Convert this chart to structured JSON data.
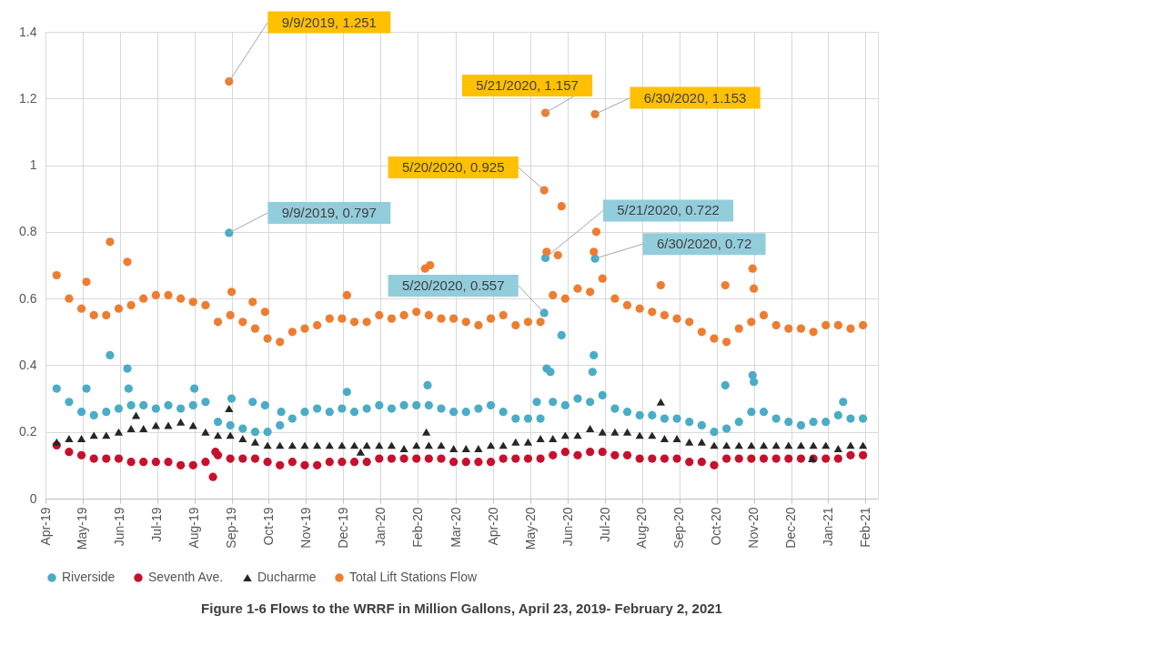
{
  "chart_data": {
    "type": "scatter",
    "title": "Figure 1-6 Flows to the WRRF in Million Gallons, April 23, 2019- February 2, 2021",
    "xlim": [
      "2019-04-14",
      "2021-02-13"
    ],
    "ylim": [
      0,
      1.4
    ],
    "yticks": [
      0,
      0.2,
      0.4,
      0.6,
      0.8,
      1,
      1.2,
      1.4
    ],
    "xticks": [
      {
        "value": "2019-04-14",
        "label": "Apr-19"
      },
      {
        "value": "2019-05-14",
        "label": "May-19"
      },
      {
        "value": "2019-06-13",
        "label": "Jun-19"
      },
      {
        "value": "2019-07-13",
        "label": "Jul-19"
      },
      {
        "value": "2019-08-12",
        "label": "Aug-19"
      },
      {
        "value": "2019-09-11",
        "label": "Sep-19"
      },
      {
        "value": "2019-10-11",
        "label": "Oct-19"
      },
      {
        "value": "2019-11-10",
        "label": "Nov-19"
      },
      {
        "value": "2019-12-10",
        "label": "Dec-19"
      },
      {
        "value": "2020-01-09",
        "label": "Jan-20"
      },
      {
        "value": "2020-02-08",
        "label": "Feb-20"
      },
      {
        "value": "2020-03-10",
        "label": "Mar-20"
      },
      {
        "value": "2020-04-09",
        "label": "Apr-20"
      },
      {
        "value": "2020-05-09",
        "label": "May-20"
      },
      {
        "value": "2020-06-08",
        "label": "Jun-20"
      },
      {
        "value": "2020-07-08",
        "label": "Jul-20"
      },
      {
        "value": "2020-08-07",
        "label": "Aug-20"
      },
      {
        "value": "2020-09-06",
        "label": "Sep-20"
      },
      {
        "value": "2020-10-06",
        "label": "Oct-20"
      },
      {
        "value": "2020-11-05",
        "label": "Nov-20"
      },
      {
        "value": "2020-12-05",
        "label": "Dec-20"
      },
      {
        "value": "2021-01-04",
        "label": "Jan-21"
      },
      {
        "value": "2021-02-03",
        "label": "Feb-21"
      }
    ],
    "grid": true,
    "legend": "bottom",
    "series": [
      {
        "name": "Riverside",
        "color": "#4bacc6",
        "marker": "circle",
        "x": [
          "2019-04-23",
          "2019-05-03",
          "2019-05-13",
          "2019-05-23",
          "2019-06-02",
          "2019-06-12",
          "2019-06-22",
          "2019-07-02",
          "2019-07-12",
          "2019-07-22",
          "2019-08-01",
          "2019-08-11",
          "2019-08-21",
          "2019-08-31",
          "2019-09-10",
          "2019-09-20",
          "2019-09-30",
          "2019-10-10",
          "2019-10-20",
          "2019-10-30",
          "2019-11-09",
          "2019-11-19",
          "2019-11-29",
          "2019-12-09",
          "2019-12-19",
          "2019-12-29",
          "2020-01-08",
          "2020-01-18",
          "2020-01-28",
          "2020-02-07",
          "2020-02-17",
          "2020-02-27",
          "2020-03-08",
          "2020-03-18",
          "2020-03-28",
          "2020-04-07",
          "2020-04-17",
          "2020-04-27",
          "2020-05-07",
          "2020-05-17",
          "2020-05-27",
          "2020-06-06",
          "2020-06-16",
          "2020-06-26",
          "2020-07-06",
          "2020-07-16",
          "2020-07-26",
          "2020-08-05",
          "2020-08-15",
          "2020-08-25",
          "2020-09-04",
          "2020-09-14",
          "2020-09-24",
          "2020-10-04",
          "2020-10-14",
          "2020-10-24",
          "2020-11-03",
          "2020-11-13",
          "2020-11-23",
          "2020-12-03",
          "2020-12-13",
          "2020-12-23",
          "2021-01-02",
          "2021-01-12",
          "2021-01-22",
          "2021-02-01",
          "2019-05-17",
          "2019-06-05",
          "2019-06-19",
          "2019-06-20",
          "2019-08-12",
          "2019-09-09",
          "2019-09-11",
          "2019-09-28",
          "2019-10-08",
          "2019-10-21",
          "2019-12-13",
          "2020-02-16",
          "2020-05-14",
          "2020-05-20",
          "2020-05-21",
          "2020-05-22",
          "2020-05-25",
          "2020-06-03",
          "2020-06-28",
          "2020-06-29",
          "2020-06-30",
          "2020-10-13",
          "2020-11-04",
          "2020-11-05",
          "2021-01-16"
        ],
        "values": [
          0.33,
          0.29,
          0.26,
          0.25,
          0.26,
          0.27,
          0.28,
          0.28,
          0.27,
          0.28,
          0.27,
          0.28,
          0.29,
          0.23,
          0.22,
          0.21,
          0.2,
          0.2,
          0.22,
          0.24,
          0.26,
          0.27,
          0.26,
          0.27,
          0.26,
          0.27,
          0.28,
          0.27,
          0.28,
          0.28,
          0.28,
          0.27,
          0.26,
          0.26,
          0.27,
          0.28,
          0.26,
          0.24,
          0.24,
          0.24,
          0.29,
          0.28,
          0.3,
          0.29,
          0.31,
          0.27,
          0.26,
          0.25,
          0.25,
          0.24,
          0.24,
          0.23,
          0.22,
          0.2,
          0.21,
          0.23,
          0.26,
          0.26,
          0.24,
          0.23,
          0.22,
          0.23,
          0.23,
          0.25,
          0.24,
          0.24,
          0.33,
          0.43,
          0.39,
          0.33,
          0.33,
          0.797,
          0.3,
          0.29,
          0.28,
          0.26,
          0.32,
          0.34,
          0.29,
          0.557,
          0.722,
          0.39,
          0.38,
          0.49,
          0.38,
          0.43,
          0.72,
          0.34,
          0.37,
          0.35,
          0.29
        ]
      },
      {
        "name": "Seventh Ave.",
        "color": "#c8102e",
        "marker": "circle",
        "x": [
          "2019-04-23",
          "2019-05-03",
          "2019-05-13",
          "2019-05-23",
          "2019-06-02",
          "2019-06-12",
          "2019-06-22",
          "2019-07-02",
          "2019-07-12",
          "2019-07-22",
          "2019-08-01",
          "2019-08-11",
          "2019-08-21",
          "2019-08-31",
          "2019-09-10",
          "2019-09-20",
          "2019-09-30",
          "2019-10-10",
          "2019-10-20",
          "2019-10-30",
          "2019-11-09",
          "2019-11-19",
          "2019-11-29",
          "2019-12-09",
          "2019-12-19",
          "2019-12-29",
          "2020-01-08",
          "2020-01-18",
          "2020-01-28",
          "2020-02-07",
          "2020-02-17",
          "2020-02-27",
          "2020-03-08",
          "2020-03-18",
          "2020-03-28",
          "2020-04-07",
          "2020-04-17",
          "2020-04-27",
          "2020-05-07",
          "2020-05-17",
          "2020-05-27",
          "2020-06-06",
          "2020-06-16",
          "2020-06-26",
          "2020-07-06",
          "2020-07-16",
          "2020-07-26",
          "2020-08-05",
          "2020-08-15",
          "2020-08-25",
          "2020-09-04",
          "2020-09-14",
          "2020-09-24",
          "2020-10-04",
          "2020-10-14",
          "2020-10-24",
          "2020-11-03",
          "2020-11-13",
          "2020-11-23",
          "2020-12-03",
          "2020-12-13",
          "2020-12-23",
          "2021-01-02",
          "2021-01-12",
          "2021-01-22",
          "2021-02-01",
          "2019-08-27",
          "2019-08-29"
        ],
        "values": [
          0.16,
          0.14,
          0.13,
          0.12,
          0.12,
          0.12,
          0.11,
          0.11,
          0.11,
          0.11,
          0.1,
          0.1,
          0.11,
          0.13,
          0.12,
          0.12,
          0.12,
          0.11,
          0.1,
          0.11,
          0.1,
          0.1,
          0.11,
          0.11,
          0.11,
          0.11,
          0.12,
          0.12,
          0.12,
          0.12,
          0.12,
          0.12,
          0.11,
          0.11,
          0.11,
          0.11,
          0.12,
          0.12,
          0.12,
          0.12,
          0.13,
          0.14,
          0.13,
          0.14,
          0.14,
          0.13,
          0.13,
          0.12,
          0.12,
          0.12,
          0.12,
          0.11,
          0.11,
          0.1,
          0.12,
          0.12,
          0.12,
          0.12,
          0.12,
          0.12,
          0.12,
          0.12,
          0.12,
          0.12,
          0.13,
          0.13,
          0.065,
          0.14
        ]
      },
      {
        "name": "Ducharme",
        "color": "#262626",
        "marker": "triangle",
        "x": [
          "2019-04-23",
          "2019-05-03",
          "2019-05-13",
          "2019-05-23",
          "2019-06-02",
          "2019-06-12",
          "2019-06-22",
          "2019-07-02",
          "2019-07-12",
          "2019-07-22",
          "2019-08-01",
          "2019-08-11",
          "2019-08-21",
          "2019-08-31",
          "2019-09-10",
          "2019-09-20",
          "2019-09-30",
          "2019-10-10",
          "2019-10-20",
          "2019-10-30",
          "2019-11-09",
          "2019-11-19",
          "2019-11-29",
          "2019-12-09",
          "2019-12-19",
          "2019-12-29",
          "2020-01-08",
          "2020-01-18",
          "2020-01-28",
          "2020-02-07",
          "2020-02-17",
          "2020-02-27",
          "2020-03-08",
          "2020-03-18",
          "2020-03-28",
          "2020-04-07",
          "2020-04-17",
          "2020-04-27",
          "2020-05-07",
          "2020-05-17",
          "2020-05-27",
          "2020-06-06",
          "2020-06-16",
          "2020-06-26",
          "2020-07-06",
          "2020-07-16",
          "2020-07-26",
          "2020-08-05",
          "2020-08-15",
          "2020-08-25",
          "2020-09-04",
          "2020-09-14",
          "2020-09-24",
          "2020-10-04",
          "2020-10-14",
          "2020-10-24",
          "2020-11-03",
          "2020-11-13",
          "2020-11-23",
          "2020-12-03",
          "2020-12-13",
          "2020-12-23",
          "2021-01-02",
          "2021-01-12",
          "2021-01-22",
          "2021-02-01",
          "2019-06-26",
          "2019-09-09",
          "2019-12-24",
          "2020-02-15",
          "2020-08-22",
          "2020-12-22"
        ],
        "values": [
          0.17,
          0.18,
          0.18,
          0.19,
          0.19,
          0.2,
          0.21,
          0.21,
          0.22,
          0.22,
          0.23,
          0.22,
          0.2,
          0.19,
          0.19,
          0.18,
          0.17,
          0.16,
          0.16,
          0.16,
          0.16,
          0.16,
          0.16,
          0.16,
          0.16,
          0.16,
          0.16,
          0.16,
          0.15,
          0.16,
          0.16,
          0.16,
          0.15,
          0.15,
          0.15,
          0.16,
          0.16,
          0.17,
          0.17,
          0.18,
          0.18,
          0.19,
          0.19,
          0.21,
          0.2,
          0.2,
          0.2,
          0.19,
          0.19,
          0.18,
          0.18,
          0.17,
          0.17,
          0.16,
          0.16,
          0.16,
          0.16,
          0.16,
          0.16,
          0.16,
          0.16,
          0.16,
          0.16,
          0.15,
          0.16,
          0.16,
          0.25,
          0.27,
          0.14,
          0.2,
          0.29,
          0.12
        ]
      },
      {
        "name": "Total Lift Stations Flow",
        "color": "#ed7d31",
        "marker": "circle",
        "x": [
          "2019-04-23",
          "2019-05-03",
          "2019-05-13",
          "2019-05-23",
          "2019-06-02",
          "2019-06-12",
          "2019-06-22",
          "2019-07-02",
          "2019-07-12",
          "2019-07-22",
          "2019-08-01",
          "2019-08-11",
          "2019-08-21",
          "2019-08-31",
          "2019-09-10",
          "2019-09-20",
          "2019-09-30",
          "2019-10-10",
          "2019-10-20",
          "2019-10-30",
          "2019-11-09",
          "2019-11-19",
          "2019-11-29",
          "2019-12-09",
          "2019-12-19",
          "2019-12-29",
          "2020-01-08",
          "2020-01-18",
          "2020-01-28",
          "2020-02-07",
          "2020-02-17",
          "2020-02-27",
          "2020-03-08",
          "2020-03-18",
          "2020-03-28",
          "2020-04-07",
          "2020-04-17",
          "2020-04-27",
          "2020-05-07",
          "2020-05-17",
          "2020-05-27",
          "2020-06-06",
          "2020-06-16",
          "2020-06-26",
          "2020-07-06",
          "2020-07-16",
          "2020-07-26",
          "2020-08-05",
          "2020-08-15",
          "2020-08-25",
          "2020-09-04",
          "2020-09-14",
          "2020-09-24",
          "2020-10-04",
          "2020-10-14",
          "2020-10-24",
          "2020-11-03",
          "2020-11-13",
          "2020-11-23",
          "2020-12-03",
          "2020-12-13",
          "2020-12-23",
          "2021-01-02",
          "2021-01-12",
          "2021-01-22",
          "2021-02-01",
          "2019-05-17",
          "2019-06-05",
          "2019-06-19",
          "2019-09-09",
          "2019-09-11",
          "2019-09-28",
          "2019-10-08",
          "2019-12-13",
          "2020-02-14",
          "2020-02-18",
          "2020-05-20",
          "2020-05-21",
          "2020-05-22",
          "2020-05-31",
          "2020-06-03",
          "2020-06-29",
          "2020-06-30",
          "2020-07-01",
          "2020-08-22",
          "2020-10-13",
          "2020-11-04",
          "2020-11-05"
        ],
        "values": [
          0.67,
          0.6,
          0.57,
          0.55,
          0.55,
          0.57,
          0.58,
          0.6,
          0.61,
          0.61,
          0.6,
          0.59,
          0.58,
          0.53,
          0.55,
          0.53,
          0.51,
          0.48,
          0.47,
          0.5,
          0.51,
          0.52,
          0.54,
          0.54,
          0.53,
          0.53,
          0.55,
          0.54,
          0.55,
          0.56,
          0.55,
          0.54,
          0.54,
          0.53,
          0.52,
          0.54,
          0.55,
          0.52,
          0.53,
          0.53,
          0.61,
          0.6,
          0.63,
          0.62,
          0.66,
          0.6,
          0.58,
          0.57,
          0.56,
          0.55,
          0.54,
          0.53,
          0.5,
          0.48,
          0.47,
          0.51,
          0.53,
          0.55,
          0.52,
          0.51,
          0.51,
          0.5,
          0.52,
          0.52,
          0.51,
          0.52,
          0.65,
          0.77,
          0.71,
          1.251,
          0.62,
          0.59,
          0.56,
          0.61,
          0.69,
          0.7,
          0.925,
          1.157,
          0.74,
          0.73,
          0.877,
          0.74,
          1.153,
          0.8,
          0.64,
          0.64,
          0.69,
          0.63
        ]
      }
    ],
    "annotations": [
      {
        "text": "9/9/2019, 1.251",
        "x": "2019-09-09",
        "y": 1.251
      },
      {
        "text": "9/9/2019, 0.797",
        "x": "2019-09-09",
        "y": 0.797
      },
      {
        "text": "5/20/2020, 0.557",
        "x": "2020-05-20",
        "y": 0.557
      },
      {
        "text": "5/21/2020, 0.722",
        "x": "2020-05-21",
        "y": 0.722
      },
      {
        "text": "6/30/2020, 0.72",
        "x": "2020-06-30",
        "y": 0.72
      },
      {
        "text": "5/20/2020, 0.925",
        "x": "2020-05-20",
        "y": 0.925
      },
      {
        "text": "5/21/2020, 1.157",
        "x": "2020-05-21",
        "y": 1.157
      },
      {
        "text": "6/30/2020, 1.153",
        "x": "2020-06-30",
        "y": 1.153
      }
    ]
  }
}
